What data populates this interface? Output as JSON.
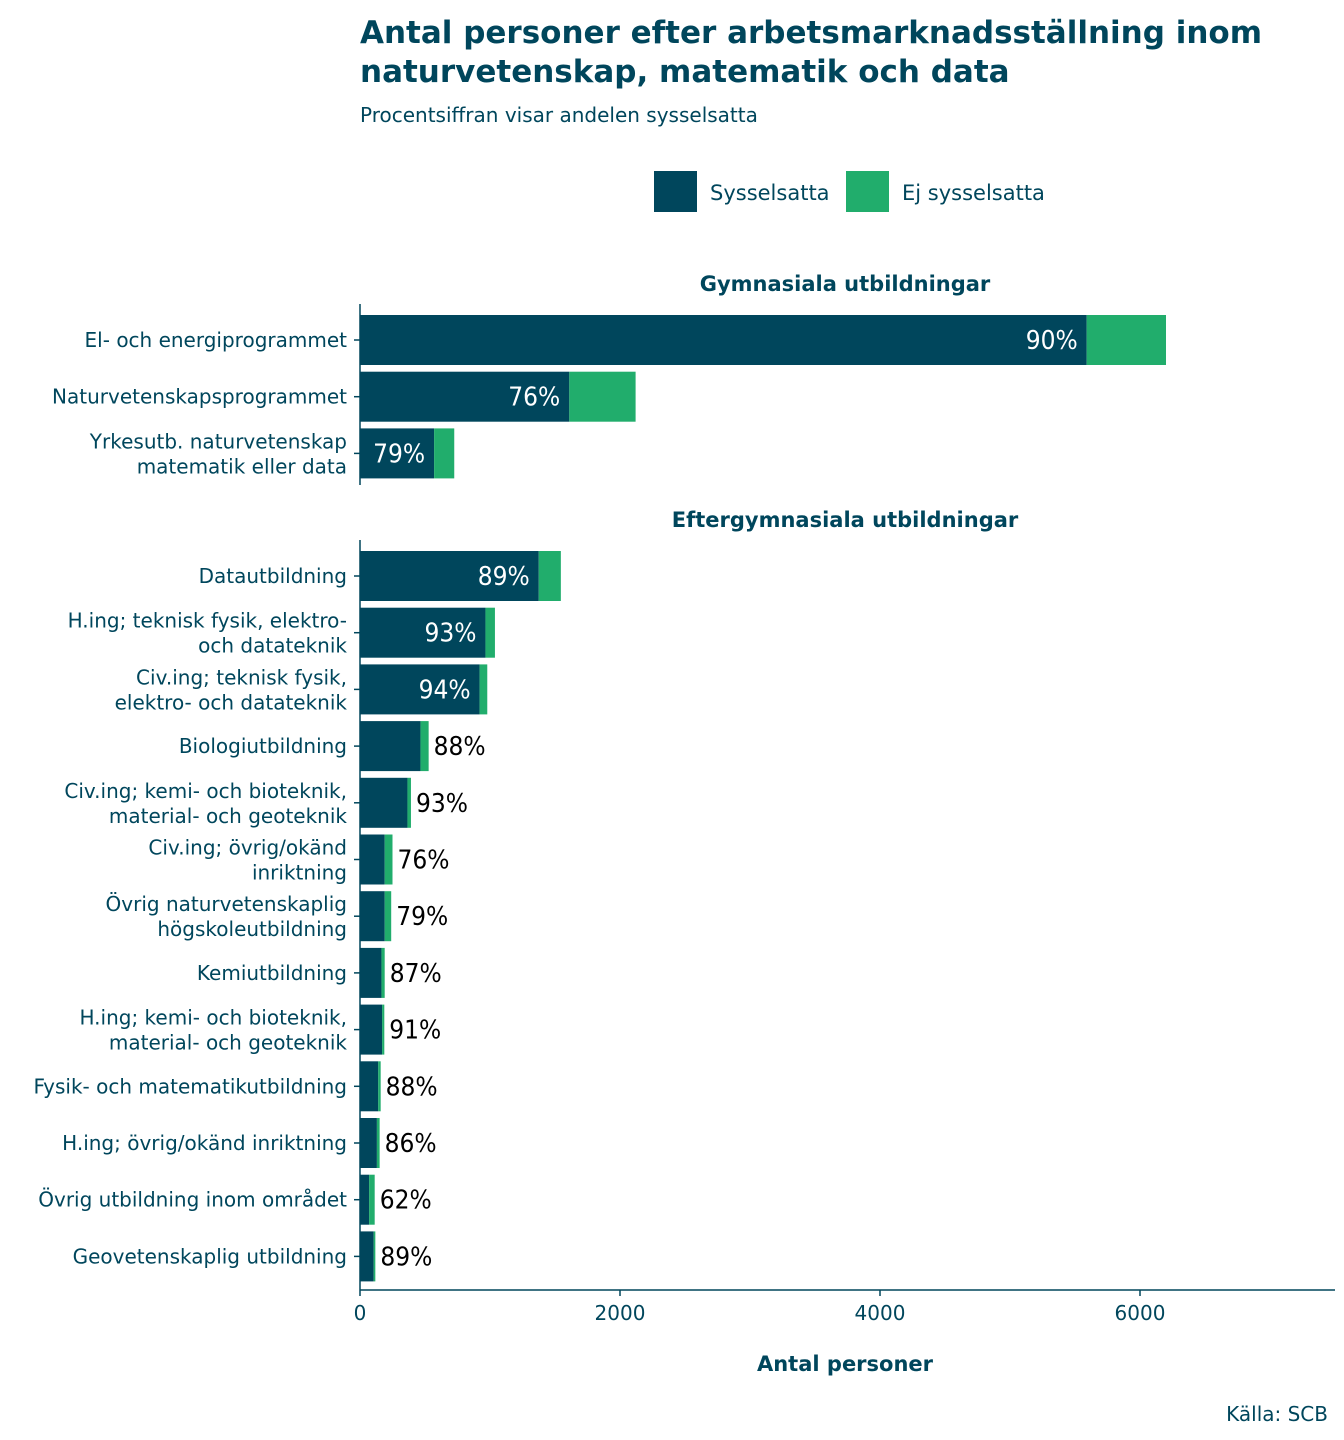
{
  "title_line1": "Antal personer efter arbetsmarknadsställning inom",
  "title_line2": "naturvetenskap, matematik och data",
  "subtitle": "Procentsiffran visar andelen sysselsatta",
  "source": "Källa: SCB",
  "colors": {
    "employed": "#00465c",
    "not_employed": "#21ad6c",
    "text": "#00465c",
    "label_inside": "#ffffff",
    "label_outside": "#000000"
  },
  "chart_data": {
    "type": "bar",
    "orientation": "horizontal",
    "stacked": true,
    "xlabel": "Antal personer",
    "xlim": [
      0,
      7500
    ],
    "xticks": [
      0,
      2000,
      4000,
      6000
    ],
    "grid": false,
    "legend": {
      "position": "top",
      "entries": [
        "Sysselsatta",
        "Ej sysselsatta"
      ]
    },
    "series_names": [
      "Sysselsatta",
      "Ej sysselsatta"
    ],
    "panels": [
      {
        "title": "Gymnasiala utbildningar",
        "bars": [
          {
            "label": [
              "El- och energiprogrammet"
            ],
            "employed": 5590,
            "not_employed": 610,
            "pct": "90%"
          },
          {
            "label": [
              "Naturvetenskapsprogrammet"
            ],
            "employed": 1610,
            "not_employed": 510,
            "pct": "76%"
          },
          {
            "label": [
              "Yrkesutb. naturvetenskap",
              "matematik eller data"
            ],
            "employed": 570,
            "not_employed": 155,
            "pct": "79%"
          }
        ]
      },
      {
        "title": "Eftergymnasiala utbildningar",
        "bars": [
          {
            "label": [
              "Datautbildning"
            ],
            "employed": 1375,
            "not_employed": 170,
            "pct": "89%"
          },
          {
            "label": [
              "H.ing; teknisk fysik, elektro-",
              "och datateknik"
            ],
            "employed": 965,
            "not_employed": 73,
            "pct": "93%"
          },
          {
            "label": [
              "Civ.ing; teknisk fysik,",
              "elektro- och datateknik"
            ],
            "employed": 920,
            "not_employed": 59,
            "pct": "94%"
          },
          {
            "label": [
              "Biologiutbildning"
            ],
            "employed": 465,
            "not_employed": 63,
            "pct": "88%"
          },
          {
            "label": [
              "Civ.ing; kemi- och bioteknik,",
              "material- och geoteknik"
            ],
            "employed": 365,
            "not_employed": 27,
            "pct": "93%"
          },
          {
            "label": [
              "Civ.ing; övrig/okänd",
              "inriktning"
            ],
            "employed": 190,
            "not_employed": 60,
            "pct": "76%"
          },
          {
            "label": [
              "Övrig naturvetenskaplig",
              "högskoleutbildning"
            ],
            "employed": 190,
            "not_employed": 50,
            "pct": "79%"
          },
          {
            "label": [
              "Kemiutbildning"
            ],
            "employed": 165,
            "not_employed": 25,
            "pct": "87%"
          },
          {
            "label": [
              "H.ing; kemi- och bioteknik,",
              "material- och geoteknik"
            ],
            "employed": 170,
            "not_employed": 17,
            "pct": "91%"
          },
          {
            "label": [
              "Fysik- och matematikutbildning"
            ],
            "employed": 140,
            "not_employed": 19,
            "pct": "88%"
          },
          {
            "label": [
              "H.ing; övrig/okänd inriktning"
            ],
            "employed": 130,
            "not_employed": 21,
            "pct": "86%"
          },
          {
            "label": [
              "Övrig utbildning inom området"
            ],
            "employed": 70,
            "not_employed": 43,
            "pct": "62%"
          },
          {
            "label": [
              "Geovetenskaplig utbildning"
            ],
            "employed": 105,
            "not_employed": 13,
            "pct": "89%"
          }
        ]
      }
    ]
  }
}
